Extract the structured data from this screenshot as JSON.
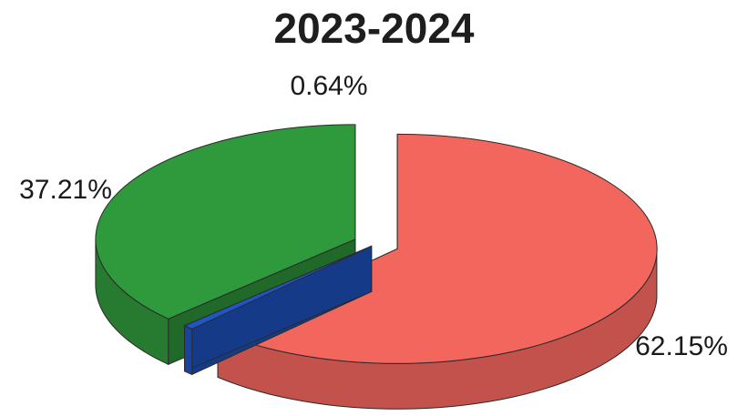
{
  "chart_data": {
    "type": "pie",
    "title": "2023-2024",
    "three_d": true,
    "exploded": true,
    "legend": "none",
    "slices": [
      {
        "value": 62.15,
        "label": "62.15%",
        "color": "#f2665e"
      },
      {
        "value": 0.64,
        "label": "0.64%",
        "color": "#1f55c6"
      },
      {
        "value": 37.21,
        "label": "37.21%",
        "color": "#2f9a3c"
      }
    ]
  }
}
